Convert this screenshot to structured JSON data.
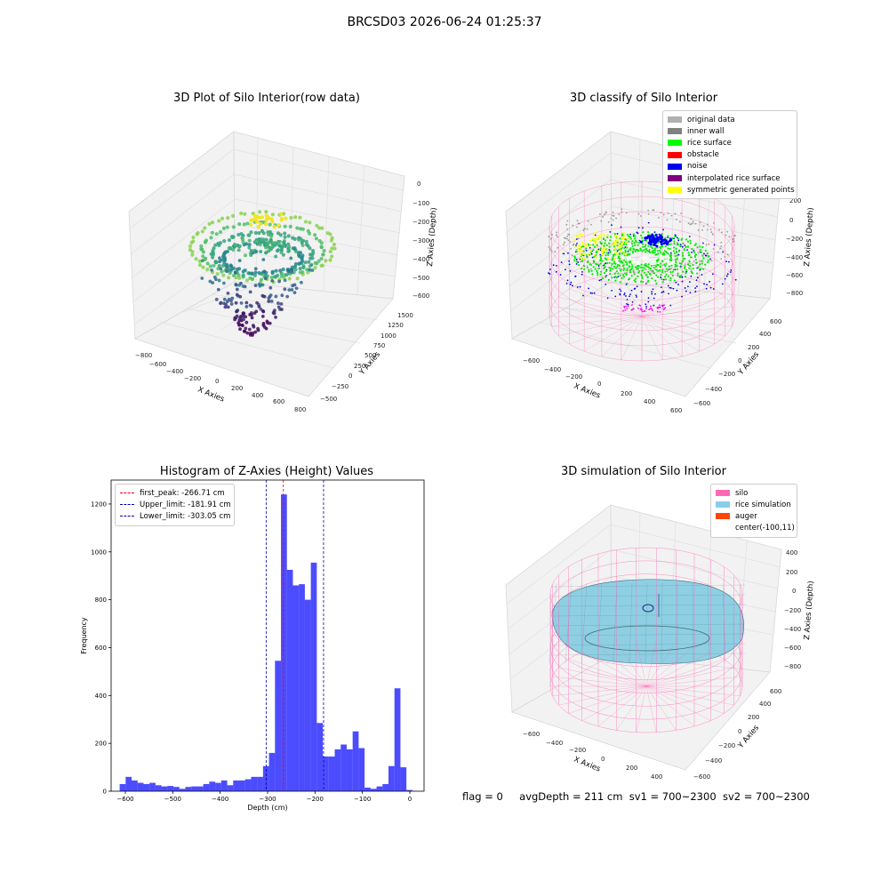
{
  "page": {
    "title": "BRCSD03 2026-06-24 01:25:37"
  },
  "footer": {
    "flag": "flag = 0",
    "avg_depth": "avgDepth = 211 cm",
    "sv1": "sv1 = 700~2300",
    "sv2": "sv2 = 700~2300"
  },
  "panels": {
    "raw": {
      "title": "3D Plot of Silo Interior(row data)",
      "xlabel": "X Axies",
      "ylabel": "Y Axies",
      "zlabel": "Z Axies (Depth)",
      "xticks": [
        "−800",
        "−600",
        "−400",
        "−200",
        "0",
        "200",
        "400",
        "600",
        "800"
      ],
      "yticks": [
        "−500",
        "−250",
        "0",
        "250",
        "500",
        "750",
        "1000",
        "1250",
        "1500"
      ],
      "zticks": [
        "0",
        "−100",
        "−200",
        "−300",
        "−400",
        "−500",
        "−600"
      ]
    },
    "classify": {
      "title": "3D classify of Silo Interior",
      "xlabel": "X Axies",
      "ylabel": "Y Axies",
      "zlabel": "Z Axies (Depth)",
      "xticks": [
        "−600",
        "−400",
        "−200",
        "0",
        "200",
        "400",
        "600"
      ],
      "yticks": [
        "−600",
        "−400",
        "−200",
        "0",
        "200",
        "400",
        "600"
      ],
      "zticks": [
        "200",
        "0",
        "−200",
        "−400",
        "−600",
        "−800"
      ],
      "legend": [
        {
          "label": "original data",
          "color": "#b0b0b0"
        },
        {
          "label": "inner wall",
          "color": "#808080"
        },
        {
          "label": "rice surface",
          "color": "#00ff00"
        },
        {
          "label": "obstacle",
          "color": "#ff0000"
        },
        {
          "label": "noise",
          "color": "#0000ee"
        },
        {
          "label": "interpolated rice surface",
          "color": "#800080"
        },
        {
          "label": "symmetric generated points",
          "color": "#ffff00"
        }
      ]
    },
    "simulation": {
      "title": "3D simulation of Silo Interior",
      "xlabel": "X Axies",
      "ylabel": "Y Axies",
      "zlabel": "Z Axies (Depth)",
      "xticks": [
        "−600",
        "−400",
        "−200",
        "0",
        "200",
        "400"
      ],
      "yticks": [
        "−600",
        "−400",
        "−200",
        "0",
        "200",
        "400",
        "600"
      ],
      "zticks": [
        "400",
        "200",
        "0",
        "−200",
        "−400",
        "−600",
        "−800"
      ],
      "legend": [
        {
          "label": "silo",
          "color": "#ff69b4"
        },
        {
          "label": "rice simulation",
          "color": "#87ceeb"
        },
        {
          "label": "auger",
          "color": "#ff4500"
        },
        {
          "label": "center(-100,11)",
          "color": "transparent"
        }
      ]
    }
  },
  "chart_data": {
    "type": "bar",
    "title": "Histogram of Z-Axies (Height) Values",
    "xlabel": "Depth (cm)",
    "ylabel": "Frequency",
    "xlim": [
      -630,
      30
    ],
    "ylim": [
      0,
      1300
    ],
    "xticks": [
      -600,
      -500,
      -400,
      -300,
      -200,
      -100,
      0
    ],
    "yticks": [
      0,
      200,
      400,
      600,
      800,
      1000,
      1200
    ],
    "bar_color": "#0000ff",
    "bin_start": -612,
    "bin_width": 12.6,
    "values": [
      30,
      60,
      45,
      35,
      30,
      35,
      25,
      20,
      22,
      18,
      10,
      18,
      20,
      20,
      30,
      40,
      35,
      45,
      25,
      45,
      45,
      50,
      60,
      60,
      105,
      160,
      545,
      1240,
      925,
      860,
      865,
      800,
      955,
      285,
      145,
      145,
      175,
      195,
      175,
      250,
      180,
      15,
      10,
      20,
      30,
      105,
      430,
      100,
      5
    ],
    "lines": [
      {
        "label": "first_peak: -266.71 cm",
        "x": -266.71,
        "color": "#ff0000"
      },
      {
        "label": "Upper_limit: -181.91 cm",
        "x": -181.91,
        "color": "#0000aa"
      },
      {
        "label": "Lower_limit: -303.05 cm",
        "x": -303.05,
        "color": "#0000aa"
      }
    ]
  }
}
